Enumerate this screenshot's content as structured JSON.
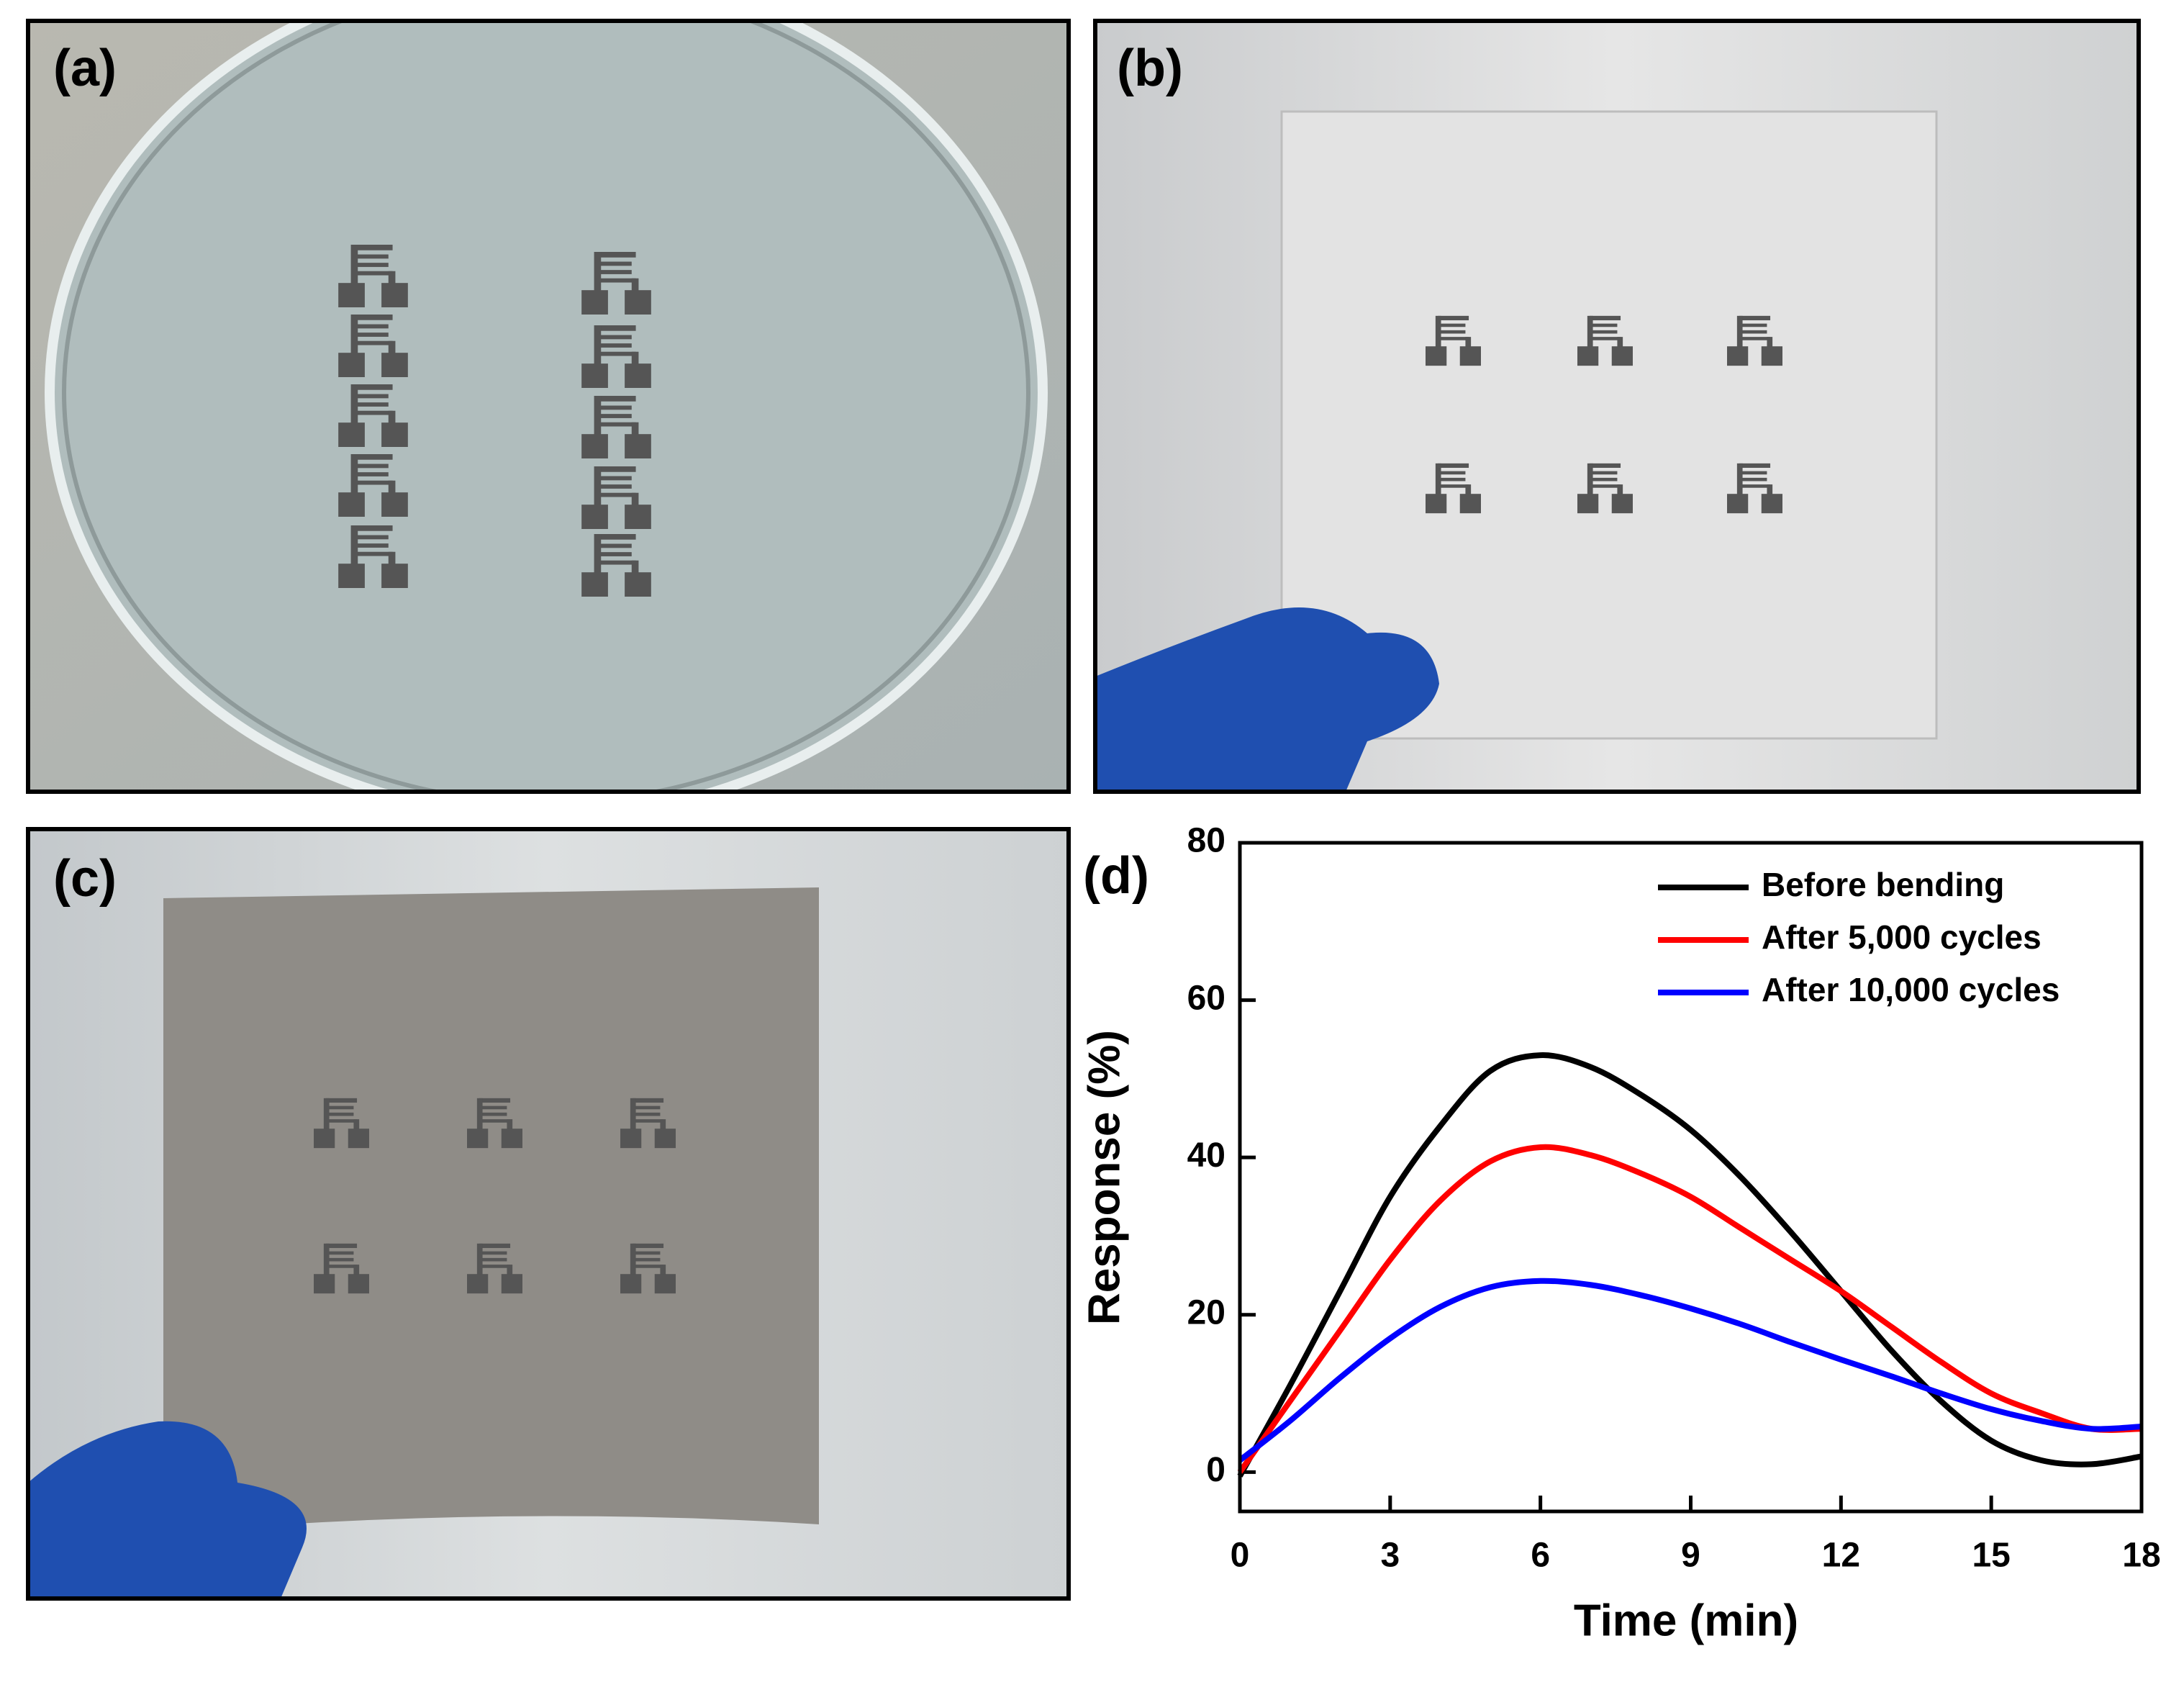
{
  "panels": [
    "(a)",
    "(b)",
    "(c)",
    "(d)"
  ],
  "chart_data": {
    "type": "line",
    "xlabel": "Time (min)",
    "ylabel": "Response (%)",
    "x": [
      0,
      1,
      2,
      3,
      4,
      5,
      6,
      7,
      8,
      9,
      10,
      11,
      12,
      13,
      14,
      15,
      16,
      17,
      18
    ],
    "series": [
      {
        "name": "Before bending",
        "color": "#000000",
        "values": [
          -0.5,
          11,
          23,
          35,
          44,
          51,
          53,
          51.5,
          48,
          43.5,
          37.5,
          30.5,
          23,
          15.5,
          9,
          4,
          1.5,
          1,
          2
        ]
      },
      {
        "name": "After 5,000 cycles",
        "color": "#ff0000",
        "values": [
          0,
          9,
          18,
          27,
          34.5,
          39.5,
          41.3,
          40.3,
          38,
          35,
          31,
          27,
          23,
          18.5,
          14,
          10,
          7.5,
          5.5,
          5.5
        ]
      },
      {
        "name": "After 10,000 cycles",
        "color": "#0000ff",
        "values": [
          1.5,
          6.5,
          12,
          17,
          21,
          23.5,
          24.3,
          23.8,
          22.5,
          20.8,
          18.8,
          16.5,
          14.3,
          12.2,
          10,
          8,
          6.5,
          5.5,
          5.8
        ]
      }
    ],
    "xlim": [
      0,
      18
    ],
    "xticks": [
      0,
      3,
      6,
      9,
      12,
      15,
      18
    ],
    "ylim": [
      -5,
      80
    ],
    "yticks": [
      0,
      20,
      40,
      60,
      80
    ],
    "legend": "upper right",
    "grid": false
  }
}
